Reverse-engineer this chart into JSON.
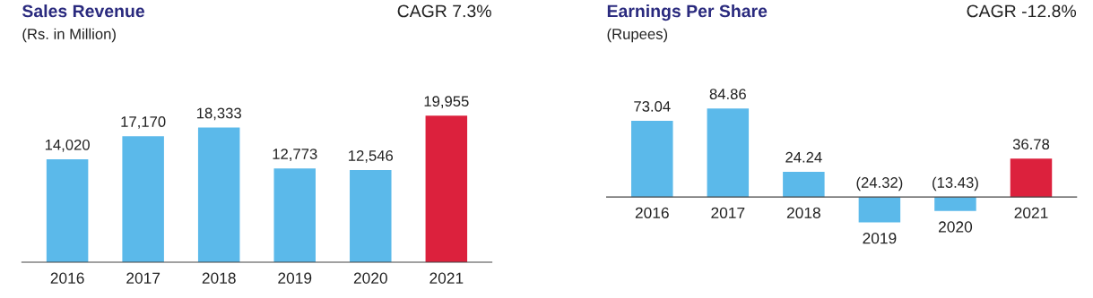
{
  "chart_data": [
    {
      "type": "bar",
      "title": "Sales Revenue",
      "subtitle": "(Rs. in Million)",
      "annotations": [
        "CAGR 7.3%"
      ],
      "categories": [
        "2016",
        "2017",
        "2018",
        "2019",
        "2020",
        "2021"
      ],
      "values": [
        14020,
        17170,
        18333,
        12773,
        12546,
        19955
      ],
      "colors": [
        "#5bb9ea",
        "#5bb9ea",
        "#5bb9ea",
        "#5bb9ea",
        "#5bb9ea",
        "#dc213d"
      ],
      "value_labels": [
        "14,020",
        "17,170",
        "18,333",
        "12,773",
        "12,546",
        "19,955"
      ]
    },
    {
      "type": "bar",
      "title": "Earnings Per Share",
      "subtitle": "(Rupees)",
      "annotations": [
        "CAGR -12.8%"
      ],
      "categories": [
        "2016",
        "2017",
        "2018",
        "2019",
        "2020",
        "2021"
      ],
      "values": [
        73.04,
        84.86,
        24.24,
        -24.32,
        -13.43,
        36.78
      ],
      "colors": [
        "#5bb9ea",
        "#5bb9ea",
        "#5bb9ea",
        "#5bb9ea",
        "#5bb9ea",
        "#dc213d"
      ],
      "value_labels": [
        "73.04",
        "84.86",
        "24.24",
        "(24.32)",
        "(13.43)",
        "36.78"
      ]
    }
  ]
}
